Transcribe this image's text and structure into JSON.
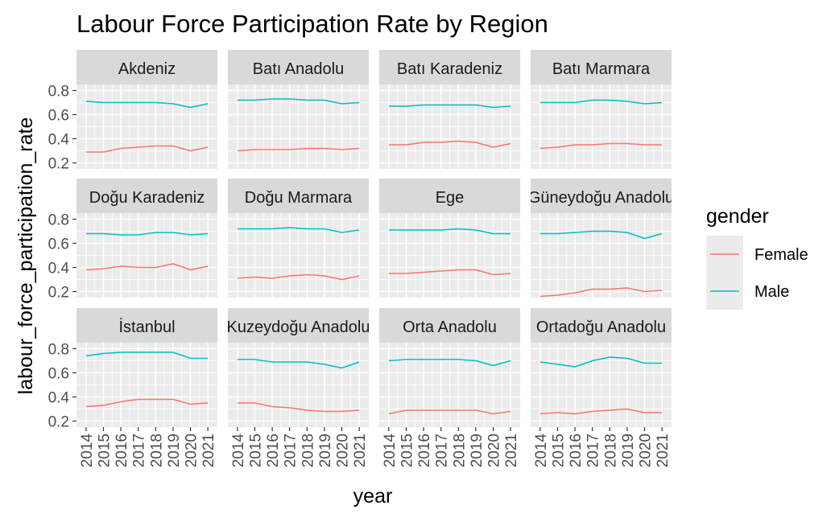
{
  "chart_data": {
    "type": "line",
    "title": "Labour Force Participation Rate by Region",
    "xlabel": "year",
    "ylabel": "labour_force_participation_rate",
    "x": [
      2014,
      2015,
      2016,
      2017,
      2018,
      2019,
      2020,
      2021
    ],
    "xticks": [
      "2014",
      "2015",
      "2016",
      "2017",
      "2018",
      "2019",
      "2020",
      "2021"
    ],
    "ylim": [
      0.15,
      0.85
    ],
    "yticks": [
      "0.2",
      "0.4",
      "0.6",
      "0.8"
    ],
    "ytick_values": [
      0.2,
      0.4,
      0.6,
      0.8
    ],
    "legend": {
      "title": "gender",
      "position": "right",
      "entries": [
        {
          "name": "Female",
          "color": "#F8766D"
        },
        {
          "name": "Male",
          "color": "#00BFC4"
        }
      ]
    },
    "panel_background": "#EBEBEB",
    "strip_background": "#D9D9D9",
    "grid": true,
    "facets": [
      {
        "name": "Akdeniz",
        "series": [
          {
            "name": "Female",
            "values": [
              0.29,
              0.29,
              0.32,
              0.33,
              0.34,
              0.34,
              0.3,
              0.33
            ]
          },
          {
            "name": "Male",
            "values": [
              0.71,
              0.7,
              0.7,
              0.7,
              0.7,
              0.69,
              0.66,
              0.69
            ]
          }
        ]
      },
      {
        "name": "Batı Anadolu",
        "series": [
          {
            "name": "Female",
            "values": [
              0.3,
              0.31,
              0.31,
              0.31,
              0.32,
              0.32,
              0.31,
              0.32
            ]
          },
          {
            "name": "Male",
            "values": [
              0.72,
              0.72,
              0.73,
              0.73,
              0.72,
              0.72,
              0.69,
              0.7
            ]
          }
        ]
      },
      {
        "name": "Batı Karadeniz",
        "series": [
          {
            "name": "Female",
            "values": [
              0.35,
              0.35,
              0.37,
              0.37,
              0.38,
              0.37,
              0.33,
              0.36
            ]
          },
          {
            "name": "Male",
            "values": [
              0.67,
              0.67,
              0.68,
              0.68,
              0.68,
              0.68,
              0.66,
              0.67
            ]
          }
        ]
      },
      {
        "name": "Batı Marmara",
        "series": [
          {
            "name": "Female",
            "values": [
              0.32,
              0.33,
              0.35,
              0.35,
              0.36,
              0.36,
              0.35,
              0.35
            ]
          },
          {
            "name": "Male",
            "values": [
              0.7,
              0.7,
              0.7,
              0.72,
              0.72,
              0.71,
              0.69,
              0.7
            ]
          }
        ]
      },
      {
        "name": "Doğu Karadeniz",
        "series": [
          {
            "name": "Female",
            "values": [
              0.38,
              0.39,
              0.41,
              0.4,
              0.4,
              0.43,
              0.38,
              0.41
            ]
          },
          {
            "name": "Male",
            "values": [
              0.68,
              0.68,
              0.67,
              0.67,
              0.69,
              0.69,
              0.67,
              0.68
            ]
          }
        ]
      },
      {
        "name": "Doğu Marmara",
        "series": [
          {
            "name": "Female",
            "values": [
              0.31,
              0.32,
              0.31,
              0.33,
              0.34,
              0.33,
              0.3,
              0.33
            ]
          },
          {
            "name": "Male",
            "values": [
              0.72,
              0.72,
              0.72,
              0.73,
              0.72,
              0.72,
              0.69,
              0.71
            ]
          }
        ]
      },
      {
        "name": "Ege",
        "series": [
          {
            "name": "Female",
            "values": [
              0.35,
              0.35,
              0.36,
              0.37,
              0.38,
              0.38,
              0.34,
              0.35
            ]
          },
          {
            "name": "Male",
            "values": [
              0.71,
              0.71,
              0.71,
              0.71,
              0.72,
              0.71,
              0.68,
              0.68
            ]
          }
        ]
      },
      {
        "name": "Güneydoğu Anadolu",
        "series": [
          {
            "name": "Female",
            "values": [
              0.16,
              0.17,
              0.19,
              0.22,
              0.22,
              0.23,
              0.2,
              0.21
            ]
          },
          {
            "name": "Male",
            "values": [
              0.68,
              0.68,
              0.69,
              0.7,
              0.7,
              0.69,
              0.64,
              0.68
            ]
          }
        ]
      },
      {
        "name": "İstanbul",
        "series": [
          {
            "name": "Female",
            "values": [
              0.32,
              0.33,
              0.36,
              0.38,
              0.38,
              0.38,
              0.34,
              0.35
            ]
          },
          {
            "name": "Male",
            "values": [
              0.74,
              0.76,
              0.77,
              0.77,
              0.77,
              0.77,
              0.72,
              0.72
            ]
          }
        ]
      },
      {
        "name": "Kuzeydoğu Anadolu",
        "series": [
          {
            "name": "Female",
            "values": [
              0.35,
              0.35,
              0.32,
              0.31,
              0.29,
              0.28,
              0.28,
              0.29
            ]
          },
          {
            "name": "Male",
            "values": [
              0.71,
              0.71,
              0.69,
              0.69,
              0.69,
              0.67,
              0.64,
              0.69
            ]
          }
        ]
      },
      {
        "name": "Orta Anadolu",
        "series": [
          {
            "name": "Female",
            "values": [
              0.26,
              0.29,
              0.29,
              0.29,
              0.29,
              0.29,
              0.26,
              0.28
            ]
          },
          {
            "name": "Male",
            "values": [
              0.7,
              0.71,
              0.71,
              0.71,
              0.71,
              0.7,
              0.66,
              0.7
            ]
          }
        ]
      },
      {
        "name": "Ortadoğu Anadolu",
        "series": [
          {
            "name": "Female",
            "values": [
              0.26,
              0.27,
              0.26,
              0.28,
              0.29,
              0.3,
              0.27,
              0.27
            ]
          },
          {
            "name": "Male",
            "values": [
              0.69,
              0.67,
              0.65,
              0.7,
              0.73,
              0.72,
              0.68,
              0.68
            ]
          }
        ]
      }
    ]
  }
}
